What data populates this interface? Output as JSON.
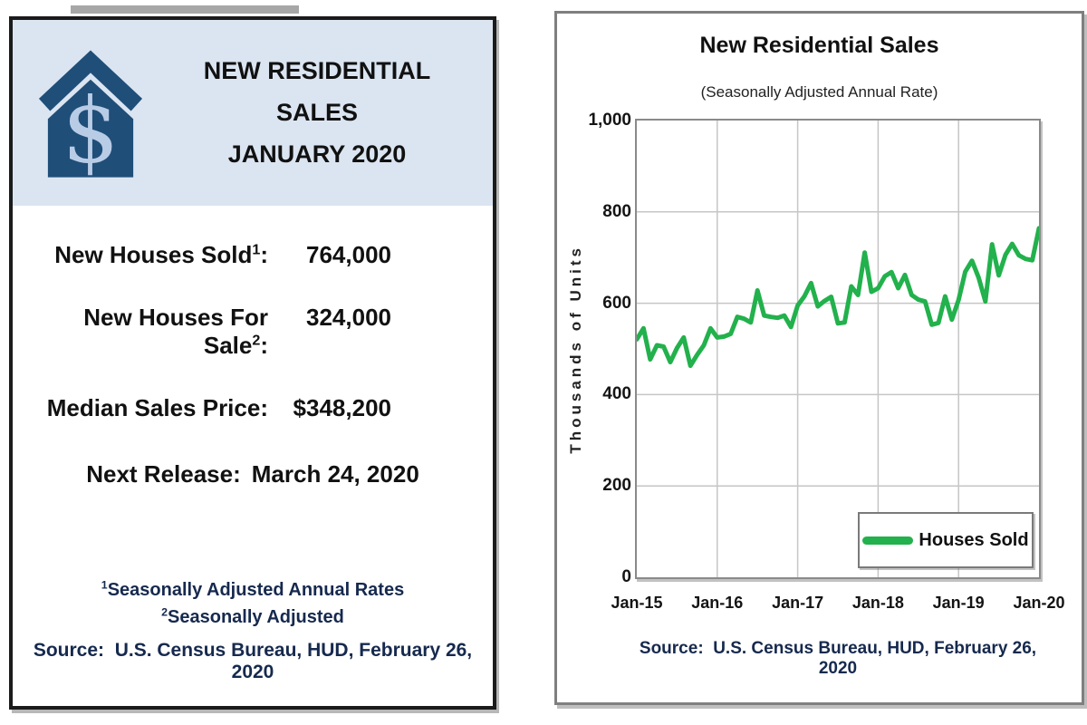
{
  "info_card": {
    "title_lines": [
      "NEW RESIDENTIAL",
      "SALES",
      "JANUARY 2020"
    ],
    "icon": {
      "name": "house-dollar-icon",
      "symbol": "$",
      "house_color": "#1f4e79",
      "symbol_color": "#b9cce6"
    },
    "header_bg": "#dbe5f1",
    "stats": [
      {
        "label": "New Houses Sold",
        "sup": "1",
        "suffix": ":",
        "value": "764,000"
      },
      {
        "label": "New Houses For Sale",
        "sup": "2",
        "suffix": ":",
        "value": "324,000"
      },
      {
        "label": "Median Sales Price",
        "sup": "",
        "suffix": ":",
        "value": "$348,200"
      }
    ],
    "next_release": {
      "label": "Next Release:",
      "value": "March 24, 2020"
    },
    "footnotes": [
      {
        "sup": "1",
        "text": "Seasonally Adjusted Annual Rates"
      },
      {
        "sup": "2",
        "text": "Seasonally Adjusted"
      }
    ],
    "source": "Source:  U.S. Census Bureau, HUD, February 26, 2020"
  },
  "chart_card": {
    "source": "Source:  U.S. Census Bureau, HUD, February 26, 2020"
  },
  "chart_data": {
    "type": "line",
    "title": "New Residential Sales",
    "subtitle": "(Seasonally Adjusted Annual Rate)",
    "xlabel": "",
    "ylabel": "Thousands of Units",
    "ylim": [
      0,
      1000
    ],
    "yticks": [
      0,
      200,
      400,
      600,
      800,
      1000
    ],
    "ytick_labels": [
      "0",
      "200",
      "400",
      "600",
      "800",
      "1,000"
    ],
    "xtick_labels": [
      "Jan-15",
      "Jan-16",
      "Jan-17",
      "Jan-18",
      "Jan-19",
      "Jan-20"
    ],
    "x_unit": "month",
    "x_start": "Jan-2015",
    "x_end": "Jan-2020",
    "grid": true,
    "legend": {
      "position": "bottom-right",
      "entries": [
        "Houses Sold"
      ]
    },
    "series": [
      {
        "name": "Houses Sold",
        "color": "#22b14c",
        "values": [
          521,
          545,
          477,
          508,
          505,
          471,
          502,
          525,
          463,
          487,
          508,
          545,
          525,
          527,
          533,
          570,
          566,
          558,
          628,
          573,
          570,
          568,
          573,
          548,
          595,
          615,
          644,
          593,
          605,
          614,
          556,
          558,
          637,
          618,
          711,
          625,
          633,
          659,
          668,
          633,
          662,
          618,
          608,
          604,
          553,
          557,
          615,
          564,
          607,
          669,
          693,
          656,
          604,
          729,
          661,
          706,
          730,
          705,
          697,
          694,
          764
        ]
      }
    ]
  }
}
